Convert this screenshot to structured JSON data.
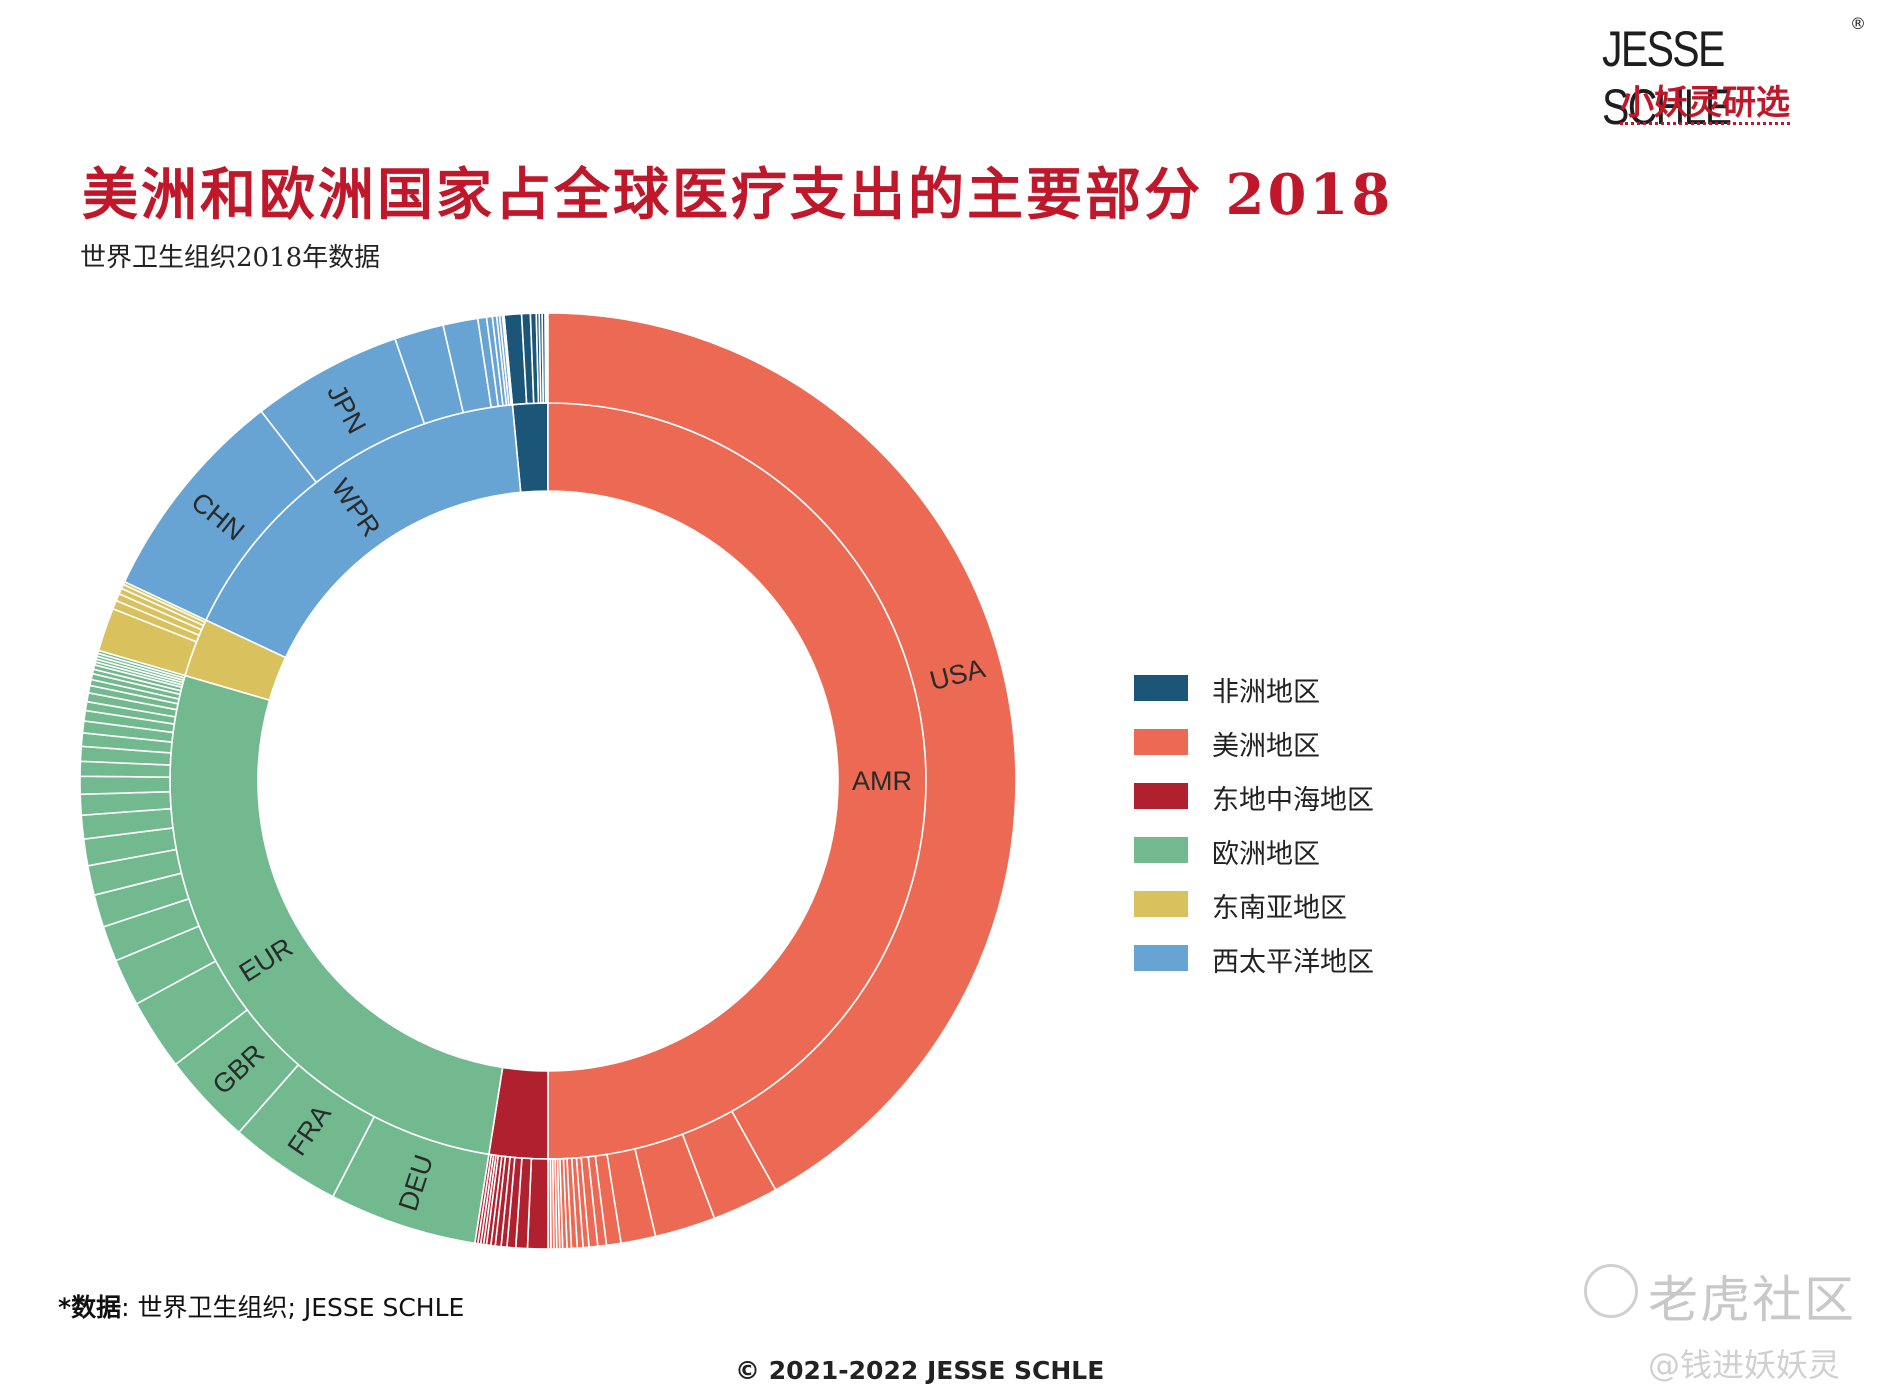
{
  "header": {
    "brand": "JESSE SCHLE",
    "brand_reg": "®",
    "brand_sub": "小妖灵研选"
  },
  "title": "美洲和欧洲国家占全球医疗支出的主要部分 2018",
  "subtitle": "世界卫生组织2018年数据",
  "legend": [
    {
      "label": "非洲地区",
      "color": "#1b5577"
    },
    {
      "label": "美洲地区",
      "color": "#ec6953"
    },
    {
      "label": "东地中海地区",
      "color": "#b0202f"
    },
    {
      "label": "欧洲地区",
      "color": "#72b98f"
    },
    {
      "label": "东南亚地区",
      "color": "#d9c15e"
    },
    {
      "label": "西太平洋地区",
      "color": "#67a3d3"
    }
  ],
  "source": {
    "key": "*数据",
    "text": ": 世界卫生组织; JESSE SCHLE"
  },
  "copyright": "© 2021-2022 JESSE SCHLE",
  "watermark": {
    "main": "老虎社区",
    "sub": "@钱进妖妖灵"
  },
  "chart_data": {
    "type": "sunburst",
    "unit": "share of global health expenditure (%)",
    "inner_ring": [
      {
        "label": "AFR",
        "color": "#1b5577",
        "value": 1.5
      },
      {
        "label": "AMR",
        "color": "#ec6953",
        "value": 50.0,
        "text": "AMR"
      },
      {
        "label": "EMR",
        "color": "#b0202f",
        "value": 2.5
      },
      {
        "label": "EUR",
        "color": "#72b98f",
        "value": 27.0,
        "text": "EUR"
      },
      {
        "label": "SEAR",
        "color": "#d9c15e",
        "value": 2.5
      },
      {
        "label": "WPR",
        "color": "#67a3d3",
        "value": 16.5,
        "text": "WPR"
      }
    ],
    "outer_ring": {
      "AFR": [
        0.6,
        0.3,
        0.2,
        0.1,
        0.1,
        0.1,
        0.05,
        0.05
      ],
      "AMR": [
        {
          "text": "USA",
          "value": 42.0
        },
        2.3,
        2.1,
        1.2,
        0.5,
        0.3,
        0.3,
        0.2,
        0.2,
        0.2,
        0.15,
        0.15,
        0.1,
        0.1,
        0.1,
        0.1,
        0.1
      ],
      "EMR": [
        0.7,
        0.4,
        0.3,
        0.2,
        0.2,
        0.15,
        0.15,
        0.1,
        0.1,
        0.1,
        0.1
      ],
      "EUR": [
        {
          "text": "DEU",
          "value": 5.0
        },
        {
          "text": "FRA",
          "value": 3.8
        },
        {
          "text": "GBR",
          "value": 3.1
        },
        2.4,
        1.6,
        1.2,
        1.1,
        1.0,
        0.9,
        0.8,
        0.7,
        0.6,
        0.5,
        0.5,
        0.45,
        0.4,
        0.35,
        0.3,
        0.3,
        0.25,
        0.2,
        0.2,
        0.15,
        0.15,
        0.1,
        0.1,
        0.1,
        0.1,
        0.1
      ],
      "SEAR": [
        1.5,
        0.3,
        0.25,
        0.2,
        0.15,
        0.1
      ],
      "WPR": [
        {
          "text": "CHN",
          "value": 7.5
        },
        {
          "text": "JPN",
          "value": 5.2
        },
        1.7,
        1.2,
        0.3,
        0.2,
        0.15,
        0.1,
        0.1,
        0.05
      ]
    }
  }
}
